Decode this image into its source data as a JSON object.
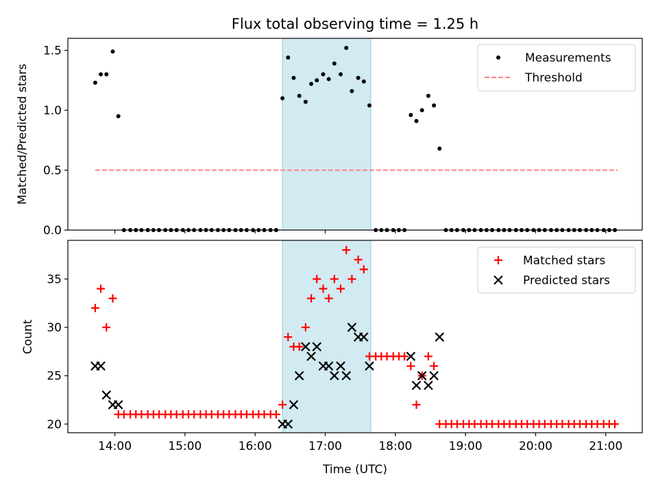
{
  "title": "Flux total observing time = 1.25 h",
  "chart_data": [
    {
      "type": "scatter",
      "panel": "top",
      "ylabel": "Matched/Predicted stars",
      "ylim": [
        0,
        1.6
      ],
      "yticks": [
        0.0,
        0.5,
        1.0,
        1.5
      ],
      "ytick_labels": [
        "0.0",
        "0.5",
        "1.0",
        "1.5"
      ],
      "xlim_hours": [
        13.33,
        21.52
      ],
      "shaded_interval_hours": [
        16.39,
        17.65
      ],
      "shade_color": "#add8e6",
      "legend_position": "top-right",
      "grid": false,
      "threshold": {
        "name": "Threshold",
        "value": 0.5,
        "x_hours": [
          13.72,
          21.17
        ],
        "color": "#ff7f7f",
        "style": "dashed"
      },
      "series": [
        {
          "name": "Measurements",
          "color": "#000000",
          "marker": "dot",
          "points": [
            [
              13.72,
              1.23
            ],
            [
              13.8,
              1.3
            ],
            [
              13.88,
              1.3
            ],
            [
              13.97,
              1.49
            ],
            [
              14.05,
              0.95
            ],
            [
              14.13,
              0
            ],
            [
              14.22,
              0
            ],
            [
              14.3,
              0
            ],
            [
              14.38,
              0
            ],
            [
              14.47,
              0
            ],
            [
              14.55,
              0
            ],
            [
              14.63,
              0
            ],
            [
              14.72,
              0
            ],
            [
              14.8,
              0
            ],
            [
              14.88,
              0
            ],
            [
              14.97,
              0
            ],
            [
              15.05,
              0
            ],
            [
              15.13,
              0
            ],
            [
              15.22,
              0
            ],
            [
              15.3,
              0
            ],
            [
              15.38,
              0
            ],
            [
              15.47,
              0
            ],
            [
              15.55,
              0
            ],
            [
              15.63,
              0
            ],
            [
              15.72,
              0
            ],
            [
              15.8,
              0
            ],
            [
              15.88,
              0
            ],
            [
              15.97,
              0
            ],
            [
              16.05,
              0
            ],
            [
              16.13,
              0
            ],
            [
              16.22,
              0
            ],
            [
              16.3,
              0
            ],
            [
              16.39,
              1.1
            ],
            [
              16.47,
              1.44
            ],
            [
              16.55,
              1.27
            ],
            [
              16.63,
              1.12
            ],
            [
              16.72,
              1.07
            ],
            [
              16.8,
              1.22
            ],
            [
              16.88,
              1.25
            ],
            [
              16.97,
              1.3
            ],
            [
              17.05,
              1.26
            ],
            [
              17.13,
              1.39
            ],
            [
              17.22,
              1.3
            ],
            [
              17.3,
              1.52
            ],
            [
              17.38,
              1.16
            ],
            [
              17.47,
              1.27
            ],
            [
              17.55,
              1.24
            ],
            [
              17.63,
              1.04
            ],
            [
              17.72,
              0
            ],
            [
              17.8,
              0
            ],
            [
              17.88,
              0
            ],
            [
              17.97,
              0
            ],
            [
              18.05,
              0
            ],
            [
              18.13,
              0
            ],
            [
              18.22,
              0.96
            ],
            [
              18.3,
              0.91
            ],
            [
              18.38,
              1.0
            ],
            [
              18.47,
              1.12
            ],
            [
              18.55,
              1.04
            ],
            [
              18.63,
              0.68
            ],
            [
              18.72,
              0
            ],
            [
              18.8,
              0
            ],
            [
              18.88,
              0
            ],
            [
              18.97,
              0
            ],
            [
              19.05,
              0
            ],
            [
              19.13,
              0
            ],
            [
              19.22,
              0
            ],
            [
              19.3,
              0
            ],
            [
              19.38,
              0
            ],
            [
              19.47,
              0
            ],
            [
              19.55,
              0
            ],
            [
              19.63,
              0
            ],
            [
              19.72,
              0
            ],
            [
              19.8,
              0
            ],
            [
              19.88,
              0
            ],
            [
              19.97,
              0
            ],
            [
              20.05,
              0
            ],
            [
              20.13,
              0
            ],
            [
              20.22,
              0
            ],
            [
              20.3,
              0
            ],
            [
              20.38,
              0
            ],
            [
              20.47,
              0
            ],
            [
              20.55,
              0
            ],
            [
              20.63,
              0
            ],
            [
              20.72,
              0
            ],
            [
              20.8,
              0
            ],
            [
              20.88,
              0
            ],
            [
              20.97,
              0
            ],
            [
              21.05,
              0
            ],
            [
              21.13,
              0
            ]
          ]
        }
      ]
    },
    {
      "type": "scatter",
      "panel": "bottom",
      "xlabel": "Time (UTC)",
      "ylabel": "Count",
      "ylim": [
        19.1,
        39.0
      ],
      "yticks": [
        20,
        25,
        30,
        35
      ],
      "ytick_labels": [
        "20",
        "25",
        "30",
        "35"
      ],
      "xlim_hours": [
        13.33,
        21.52
      ],
      "xticks_hours": [
        14,
        15,
        16,
        17,
        18,
        19,
        20,
        21
      ],
      "xtick_labels": [
        "14:00",
        "15:00",
        "16:00",
        "17:00",
        "18:00",
        "19:00",
        "20:00",
        "21:00"
      ],
      "shaded_interval_hours": [
        16.39,
        17.65
      ],
      "shade_color": "#add8e6",
      "legend_position": "top-right",
      "grid": false,
      "series": [
        {
          "name": "Matched stars",
          "color": "#ff0000",
          "marker": "plus",
          "points": [
            [
              13.72,
              32
            ],
            [
              13.8,
              34
            ],
            [
              13.88,
              30
            ],
            [
              13.97,
              33
            ],
            [
              14.05,
              21
            ],
            [
              14.13,
              21
            ],
            [
              14.22,
              21
            ],
            [
              14.3,
              21
            ],
            [
              14.38,
              21
            ],
            [
              14.47,
              21
            ],
            [
              14.55,
              21
            ],
            [
              14.63,
              21
            ],
            [
              14.72,
              21
            ],
            [
              14.8,
              21
            ],
            [
              14.88,
              21
            ],
            [
              14.97,
              21
            ],
            [
              15.05,
              21
            ],
            [
              15.13,
              21
            ],
            [
              15.22,
              21
            ],
            [
              15.3,
              21
            ],
            [
              15.38,
              21
            ],
            [
              15.47,
              21
            ],
            [
              15.55,
              21
            ],
            [
              15.63,
              21
            ],
            [
              15.72,
              21
            ],
            [
              15.8,
              21
            ],
            [
              15.88,
              21
            ],
            [
              15.97,
              21
            ],
            [
              16.05,
              21
            ],
            [
              16.13,
              21
            ],
            [
              16.22,
              21
            ],
            [
              16.3,
              21
            ],
            [
              16.39,
              22
            ],
            [
              16.47,
              29
            ],
            [
              16.55,
              28
            ],
            [
              16.63,
              28
            ],
            [
              16.72,
              30
            ],
            [
              16.8,
              33
            ],
            [
              16.88,
              35
            ],
            [
              16.97,
              34
            ],
            [
              17.05,
              33
            ],
            [
              17.13,
              35
            ],
            [
              17.22,
              34
            ],
            [
              17.3,
              38
            ],
            [
              17.38,
              35
            ],
            [
              17.47,
              37
            ],
            [
              17.55,
              36
            ],
            [
              17.63,
              27
            ],
            [
              17.72,
              27
            ],
            [
              17.8,
              27
            ],
            [
              17.88,
              27
            ],
            [
              17.97,
              27
            ],
            [
              18.05,
              27
            ],
            [
              18.13,
              27
            ],
            [
              18.22,
              26
            ],
            [
              18.3,
              22
            ],
            [
              18.38,
              25
            ],
            [
              18.47,
              27
            ],
            [
              18.55,
              26
            ],
            [
              18.63,
              20
            ],
            [
              18.72,
              20
            ],
            [
              18.8,
              20
            ],
            [
              18.88,
              20
            ],
            [
              18.97,
              20
            ],
            [
              19.05,
              20
            ],
            [
              19.13,
              20
            ],
            [
              19.22,
              20
            ],
            [
              19.3,
              20
            ],
            [
              19.38,
              20
            ],
            [
              19.47,
              20
            ],
            [
              19.55,
              20
            ],
            [
              19.63,
              20
            ],
            [
              19.72,
              20
            ],
            [
              19.8,
              20
            ],
            [
              19.88,
              20
            ],
            [
              19.97,
              20
            ],
            [
              20.05,
              20
            ],
            [
              20.13,
              20
            ],
            [
              20.22,
              20
            ],
            [
              20.3,
              20
            ],
            [
              20.38,
              20
            ],
            [
              20.47,
              20
            ],
            [
              20.55,
              20
            ],
            [
              20.63,
              20
            ],
            [
              20.72,
              20
            ],
            [
              20.8,
              20
            ],
            [
              20.88,
              20
            ],
            [
              20.97,
              20
            ],
            [
              21.05,
              20
            ],
            [
              21.13,
              20
            ]
          ]
        },
        {
          "name": "Predicted stars",
          "color": "#000000",
          "marker": "x",
          "points": [
            [
              13.72,
              26
            ],
            [
              13.8,
              26
            ],
            [
              13.88,
              23
            ],
            [
              13.97,
              22
            ],
            [
              14.05,
              22
            ],
            [
              16.39,
              20
            ],
            [
              16.47,
              20
            ],
            [
              16.55,
              22
            ],
            [
              16.63,
              25
            ],
            [
              16.72,
              28
            ],
            [
              16.8,
              27
            ],
            [
              16.88,
              28
            ],
            [
              16.97,
              26
            ],
            [
              17.05,
              26
            ],
            [
              17.13,
              25
            ],
            [
              17.22,
              26
            ],
            [
              17.3,
              25
            ],
            [
              17.38,
              30
            ],
            [
              17.47,
              29
            ],
            [
              17.55,
              29
            ],
            [
              17.63,
              26
            ],
            [
              18.22,
              27
            ],
            [
              18.3,
              24
            ],
            [
              18.38,
              25
            ],
            [
              18.47,
              24
            ],
            [
              18.55,
              25
            ],
            [
              18.63,
              29
            ]
          ]
        }
      ]
    }
  ]
}
